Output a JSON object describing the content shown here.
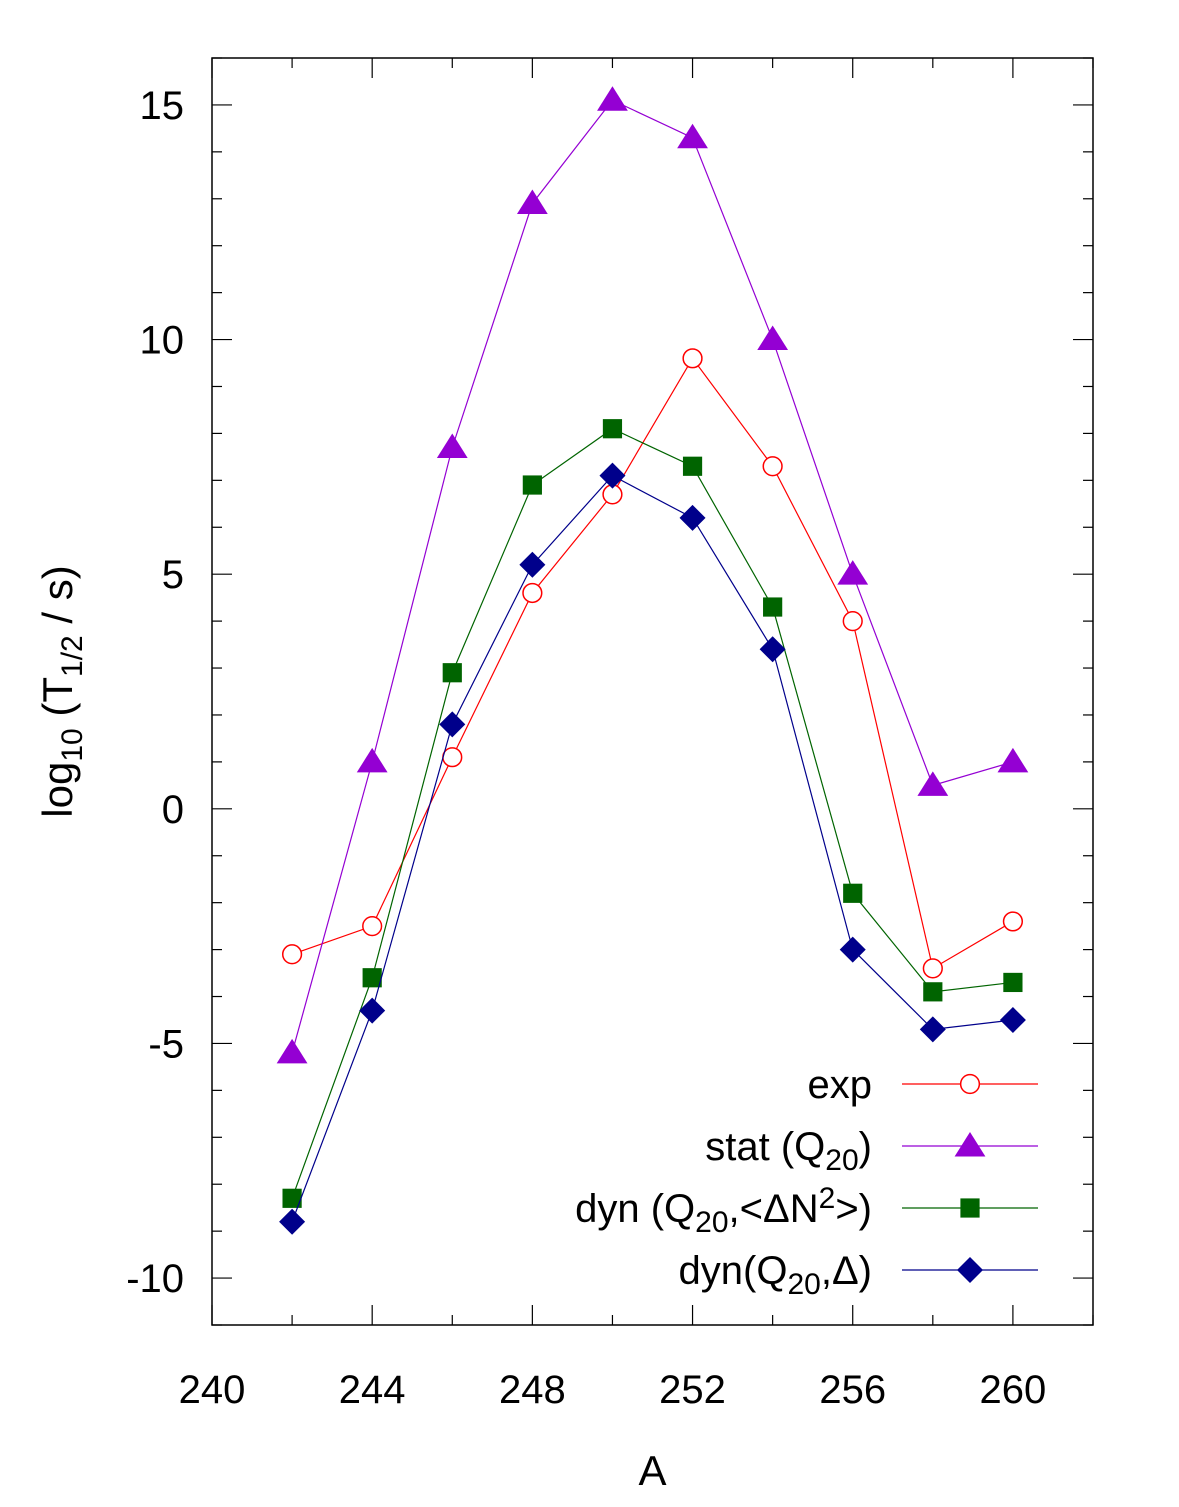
{
  "chart_data": {
    "type": "line",
    "xlabel": "A",
    "ylabel": {
      "base": "log",
      "base_sub": "10",
      "open": " (T",
      "t_sub": "1/2",
      "close": " / s)"
    },
    "xlim": [
      240,
      262
    ],
    "ylim": [
      -11,
      16
    ],
    "xticks": [
      240,
      244,
      248,
      252,
      256,
      260
    ],
    "yticks": [
      -10,
      -5,
      0,
      5,
      10,
      15
    ],
    "xtick_labels": [
      "240",
      "244",
      "248",
      "252",
      "256",
      "260"
    ],
    "ytick_labels": [
      "-10",
      "-5",
      "0",
      "5",
      "10",
      "15"
    ],
    "minor_x_step": 2,
    "minor_y_step": 1,
    "x": [
      242,
      244,
      246,
      248,
      250,
      252,
      254,
      256,
      258,
      260
    ],
    "legend_position": "bottom-right",
    "series": [
      {
        "name": "exp",
        "label_parts": [
          {
            "t": "exp"
          }
        ],
        "color": "#ff0000",
        "marker": "open-circle",
        "values": [
          -3.1,
          -2.5,
          1.1,
          4.6,
          6.7,
          9.6,
          7.3,
          4.0,
          -3.4,
          -2.4
        ]
      },
      {
        "name": "stat (Q20)",
        "label_parts": [
          {
            "t": "stat (Q"
          },
          {
            "t": "20",
            "sub": true
          },
          {
            "t": ")"
          }
        ],
        "color": "#9400d3",
        "marker": "triangle",
        "values": [
          -5.2,
          1.0,
          7.7,
          12.9,
          15.1,
          14.3,
          10.0,
          5.0,
          0.5,
          1.0
        ]
      },
      {
        "name": "dyn (Q20,<ΔN2>)",
        "label_parts": [
          {
            "t": "dyn (Q"
          },
          {
            "t": "20",
            "sub": true
          },
          {
            "t": ",<ΔN"
          },
          {
            "t": "2",
            "sup": true
          },
          {
            "t": ">)"
          }
        ],
        "color": "#006400",
        "marker": "square",
        "values": [
          -8.3,
          -3.6,
          2.9,
          6.9,
          8.1,
          7.3,
          4.3,
          -1.8,
          -3.9,
          -3.7
        ]
      },
      {
        "name": "dyn(Q20,Δ)",
        "label_parts": [
          {
            "t": "dyn(Q"
          },
          {
            "t": "20",
            "sub": true
          },
          {
            "t": ",Δ)"
          }
        ],
        "color": "#00008b",
        "marker": "diamond",
        "values": [
          -8.8,
          -4.3,
          1.8,
          5.2,
          7.1,
          6.2,
          3.4,
          -3.0,
          -4.7,
          -4.5
        ]
      }
    ]
  }
}
